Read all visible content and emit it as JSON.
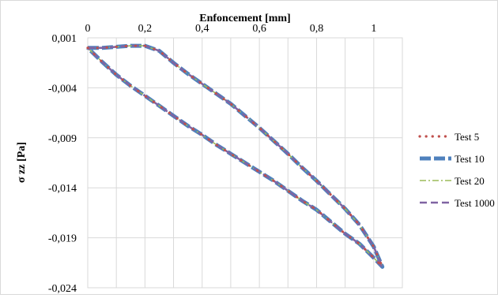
{
  "chart_data": {
    "type": "line",
    "title": "Enfoncement [mm]",
    "xlabel": "Enfoncement [mm]",
    "ylabel": "σ zz [Pa]",
    "xlim": [
      0,
      1.1
    ],
    "ylim": [
      -0.024,
      0.001
    ],
    "x_axis_position": "top",
    "x_ticks": [
      0,
      0.2,
      0.4,
      0.6,
      0.8,
      1
    ],
    "x_tick_labels": [
      "0",
      "0,2",
      "0,4",
      "0,6",
      "0,8",
      "1"
    ],
    "y_ticks": [
      0.001,
      -0.004,
      -0.009,
      -0.014,
      -0.019,
      -0.024
    ],
    "y_tick_labels": [
      "0,001",
      "-0,004",
      "-0,009",
      "-0,014",
      "-0,019",
      "-0,024"
    ],
    "x_minor_gridlines_every": 0.1,
    "grid": true,
    "legend_position": "right",
    "curve": {
      "x": [
        0,
        0.05,
        0.1,
        0.15,
        0.2,
        0.25,
        0.3,
        0.35,
        0.4,
        0.45,
        0.5,
        0.55,
        0.6,
        0.65,
        0.7,
        0.75,
        0.8,
        0.85,
        0.9,
        0.95,
        1.0,
        1.03,
        1.0,
        0.95,
        0.9,
        0.85,
        0.8,
        0.75,
        0.7,
        0.65,
        0.6,
        0.55,
        0.5,
        0.45,
        0.4,
        0.35,
        0.3,
        0.25,
        0.2,
        0.15,
        0.1,
        0.05,
        0
      ],
      "y": [
        0.0,
        0.0,
        0.0001,
        0.0002,
        0.0002,
        -0.0003,
        -0.0015,
        -0.0026,
        -0.0036,
        -0.0046,
        -0.0056,
        -0.0068,
        -0.008,
        -0.0093,
        -0.0106,
        -0.012,
        -0.0133,
        -0.0147,
        -0.0161,
        -0.0177,
        -0.0199,
        -0.0219,
        -0.021,
        -0.0196,
        -0.0186,
        -0.0174,
        -0.0162,
        -0.0153,
        -0.0143,
        -0.0133,
        -0.0124,
        -0.0115,
        -0.0106,
        -0.0097,
        -0.0087,
        -0.0078,
        -0.0068,
        -0.0058,
        -0.0048,
        -0.0038,
        -0.0027,
        -0.0014,
        0.0
      ]
    },
    "series": [
      {
        "name": "Test 5",
        "color": "#c0504d",
        "style": "dotted-markers"
      },
      {
        "name": "Test 10",
        "color": "#4f81bd",
        "style": "thick-dash"
      },
      {
        "name": "Test 20",
        "color": "#9bbb59",
        "style": "dash-dot"
      },
      {
        "name": "Test 1000",
        "color": "#8064a2",
        "style": "dash"
      }
    ]
  }
}
